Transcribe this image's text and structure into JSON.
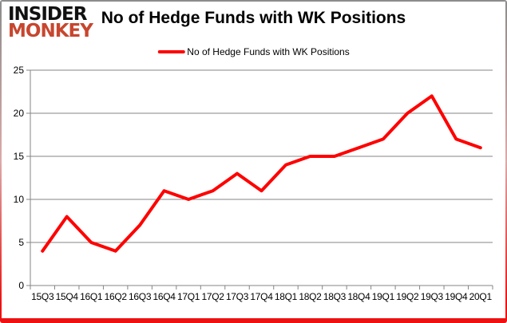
{
  "brand": {
    "line1": "INSIDER",
    "line2": "MONKEY"
  },
  "header": {
    "title": "No of Hedge Funds with WK Positions"
  },
  "legend": {
    "label": "No of Hedge Funds with WK Positions"
  },
  "chart_data": {
    "type": "line",
    "title": "No of Hedge Funds with WK Positions",
    "categories": [
      "15Q3",
      "15Q4",
      "16Q1",
      "16Q2",
      "16Q3",
      "16Q4",
      "17Q1",
      "17Q2",
      "17Q3",
      "17Q4",
      "18Q1",
      "18Q2",
      "18Q3",
      "18Q4",
      "19Q1",
      "19Q2",
      "19Q3",
      "19Q4",
      "20Q1"
    ],
    "series": [
      {
        "name": "No of Hedge Funds with WK Positions",
        "color": "#FF0000",
        "values": [
          4,
          8,
          5,
          4,
          7,
          11,
          10,
          11,
          13,
          11,
          14,
          15,
          15,
          16,
          17,
          20,
          22,
          17,
          16
        ]
      }
    ],
    "xlabel": "",
    "ylabel": "",
    "ylim": [
      0,
      25
    ],
    "yticks": [
      0,
      5,
      10,
      15,
      20,
      25
    ],
    "grid": true,
    "legend_position": "top-center"
  },
  "colors": {
    "line": "#FF0000",
    "grid": "#848484",
    "axis": "#848484",
    "text": "#000000",
    "logo_black": "#111111",
    "logo_red": "#C7462E",
    "frame_top": "#8C8C8C",
    "frame_mid": "#DCA9A9",
    "frame_bottom": "#EE1111",
    "background": "#FFFFFF"
  }
}
